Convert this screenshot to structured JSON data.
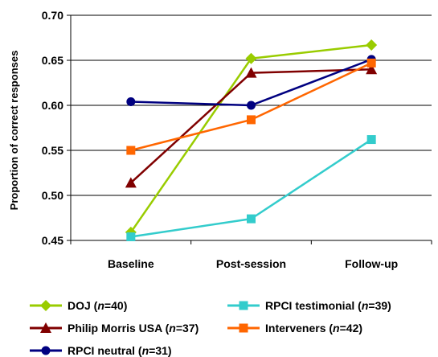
{
  "chart_data": {
    "type": "line",
    "ylabel": "Proportion of correct responses",
    "xlabel": "",
    "categories": [
      "Baseline",
      "Post-session",
      "Follow-up"
    ],
    "ylim": [
      0.45,
      0.7
    ],
    "yticks": [
      "0.45",
      "0.50",
      "0.55",
      "0.60",
      "0.65",
      "0.70"
    ],
    "grid": "horizontal",
    "legend_position": "bottom",
    "series": [
      {
        "name": "DOJ",
        "n": "40",
        "color": "#99cc00",
        "marker": "diamond",
        "values": [
          0.459,
          0.652,
          0.667
        ]
      },
      {
        "name": "Philip Morris USA",
        "n": "37",
        "color": "#800000",
        "marker": "triangle",
        "values": [
          0.514,
          0.636,
          0.64
        ]
      },
      {
        "name": "RPCI neutral",
        "n": "31",
        "color": "#000080",
        "marker": "circle",
        "values": [
          0.604,
          0.6,
          0.651
        ]
      },
      {
        "name": "RPCI testimonial",
        "n": "39",
        "color": "#33cccc",
        "marker": "square",
        "values": [
          0.454,
          0.474,
          0.562
        ]
      },
      {
        "name": "Interveners",
        "n": "42",
        "color": "#ff6600",
        "marker": "square",
        "values": [
          0.55,
          0.584,
          0.647
        ]
      }
    ]
  }
}
